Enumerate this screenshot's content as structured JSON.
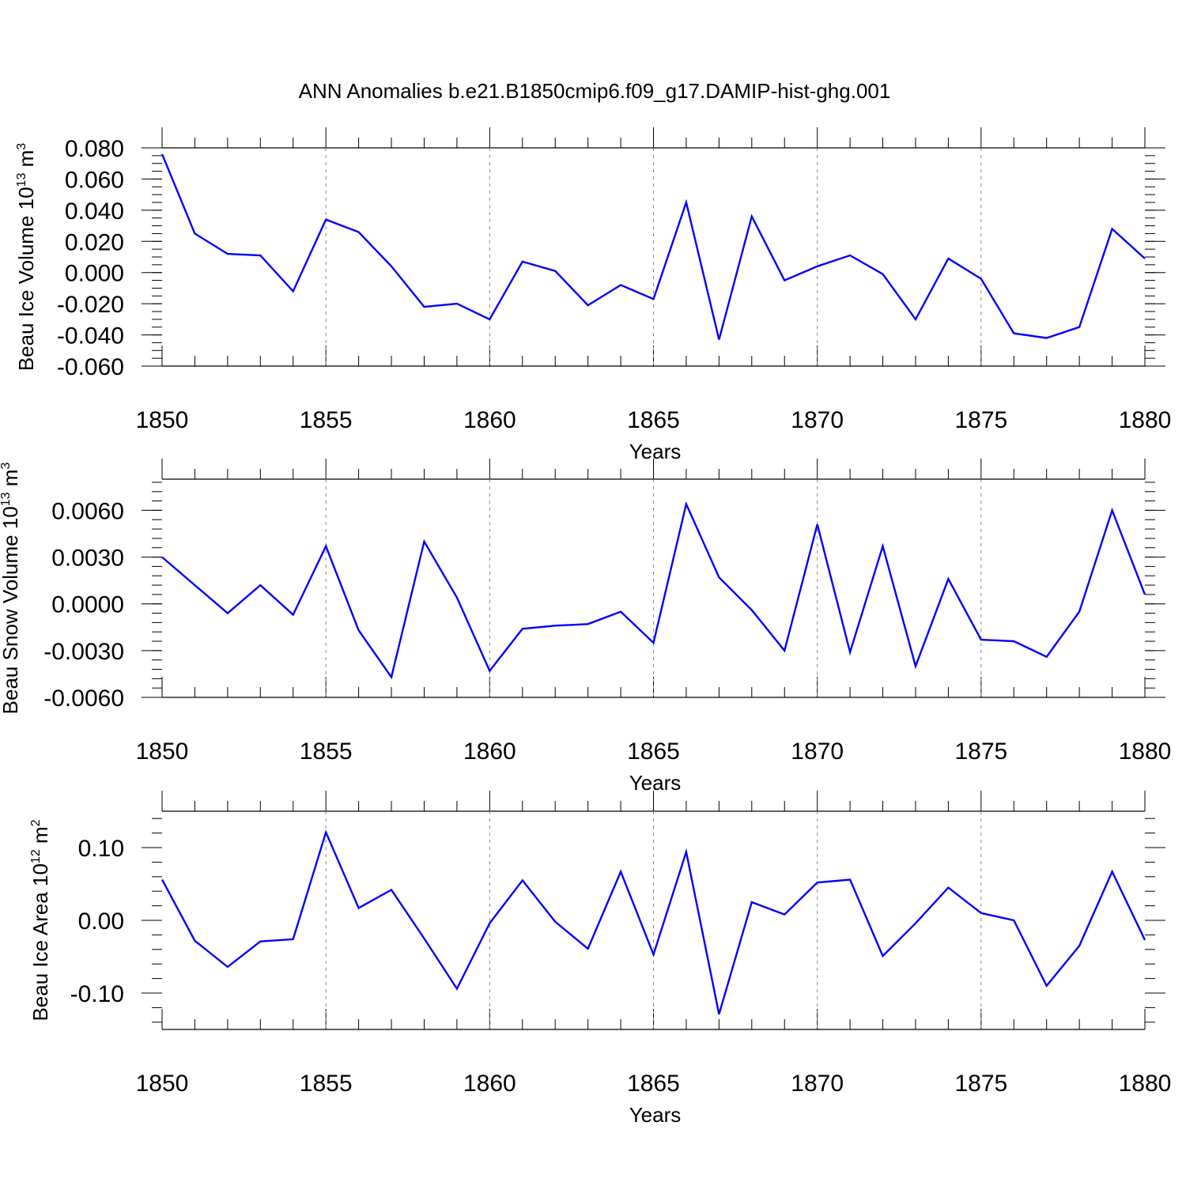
{
  "figure": {
    "title": "ANN Anomalies b.e21.B1850cmip6.f09_g17.DAMIP-hist-ghg.001",
    "line_color": "#0000ff"
  },
  "chart_data": [
    {
      "type": "line",
      "xlabel": "Years",
      "ylabel": {
        "text": "Beau Ice Volume 10",
        "exponent": "13",
        "unit": "m",
        "unit_exponent": "3"
      },
      "xlim": [
        1850,
        1880
      ],
      "ylim": [
        -0.06,
        0.08
      ],
      "grid": "vertical dashed at 5-year ticks",
      "x_ticks": [
        "1850",
        "1855",
        "1860",
        "1865",
        "1870",
        "1875",
        "1880"
      ],
      "y_ticks": [
        {
          "value": 0.08,
          "label": "0.080"
        },
        {
          "value": 0.06,
          "label": "0.060"
        },
        {
          "value": 0.04,
          "label": "0.040"
        },
        {
          "value": 0.02,
          "label": "0.020"
        },
        {
          "value": 0.0,
          "label": "0.000"
        },
        {
          "value": -0.02,
          "label": "-0.020"
        },
        {
          "value": -0.04,
          "label": "-0.040"
        },
        {
          "value": -0.06,
          "label": "-0.060"
        }
      ],
      "y_minor_step": 0.005,
      "x": [
        1850,
        1851,
        1852,
        1853,
        1854,
        1855,
        1856,
        1857,
        1858,
        1859,
        1860,
        1861,
        1862,
        1863,
        1864,
        1865,
        1866,
        1867,
        1868,
        1869,
        1870,
        1871,
        1872,
        1873,
        1874,
        1875,
        1876,
        1877,
        1878,
        1879,
        1880
      ],
      "values": [
        0.076,
        0.025,
        0.012,
        0.011,
        -0.012,
        0.034,
        0.026,
        0.004,
        -0.022,
        -0.02,
        -0.03,
        0.007,
        0.001,
        -0.021,
        -0.008,
        -0.017,
        0.045,
        -0.043,
        0.036,
        -0.005,
        0.004,
        0.011,
        -0.001,
        -0.03,
        0.009,
        -0.004,
        -0.039,
        -0.042,
        -0.035,
        0.028,
        0.009
      ]
    },
    {
      "type": "line",
      "xlabel": "Years",
      "ylabel": {
        "text": "Beau Snow Volume 10",
        "exponent": "13",
        "unit": "m",
        "unit_exponent": "3"
      },
      "xlim": [
        1850,
        1880
      ],
      "ylim": [
        -0.006,
        0.008
      ],
      "grid": "vertical dashed at 5-year ticks",
      "x_ticks": [
        "1850",
        "1855",
        "1860",
        "1865",
        "1870",
        "1875",
        "1880"
      ],
      "y_ticks": [
        {
          "value": 0.006,
          "label": "0.0060"
        },
        {
          "value": 0.003,
          "label": "0.0030"
        },
        {
          "value": 0.0,
          "label": "0.0000"
        },
        {
          "value": -0.003,
          "label": "-0.0030"
        },
        {
          "value": -0.006,
          "label": "-0.0060"
        }
      ],
      "y_minor_step": 0.0006,
      "x": [
        1850,
        1851,
        1852,
        1853,
        1854,
        1855,
        1856,
        1857,
        1858,
        1859,
        1860,
        1861,
        1862,
        1863,
        1864,
        1865,
        1866,
        1867,
        1868,
        1869,
        1870,
        1871,
        1872,
        1873,
        1874,
        1875,
        1876,
        1877,
        1878,
        1879,
        1880
      ],
      "values": [
        0.003,
        0.0012,
        -0.0006,
        0.0012,
        -0.0007,
        0.0037,
        -0.0017,
        -0.0047,
        0.004,
        0.0004,
        -0.0043,
        -0.0016,
        -0.0014,
        -0.0013,
        -0.0005,
        -0.0025,
        0.0064,
        0.0017,
        -0.0004,
        -0.003,
        0.0051,
        -0.0031,
        0.0037,
        -0.004,
        0.0016,
        -0.0023,
        -0.0024,
        -0.0034,
        -0.0005,
        0.006,
        0.0006
      ]
    },
    {
      "type": "line",
      "xlabel": "Years",
      "ylabel": {
        "text": "Beau Ice Area 10",
        "exponent": "12",
        "unit": "m",
        "unit_exponent": "2"
      },
      "xlim": [
        1850,
        1880
      ],
      "ylim": [
        -0.15,
        0.15
      ],
      "grid": "vertical dashed at 5-year ticks",
      "x_ticks": [
        "1850",
        "1855",
        "1860",
        "1865",
        "1870",
        "1875",
        "1880"
      ],
      "y_ticks": [
        {
          "value": 0.1,
          "label": "0.10"
        },
        {
          "value": 0.0,
          "label": "0.00"
        },
        {
          "value": -0.1,
          "label": "-0.10"
        }
      ],
      "y_minor_step": 0.02,
      "x": [
        1850,
        1851,
        1852,
        1853,
        1854,
        1855,
        1856,
        1857,
        1858,
        1859,
        1860,
        1861,
        1862,
        1863,
        1864,
        1865,
        1866,
        1867,
        1868,
        1869,
        1870,
        1871,
        1872,
        1873,
        1874,
        1875,
        1876,
        1877,
        1878,
        1879,
        1880
      ],
      "values": [
        0.056,
        -0.028,
        -0.064,
        -0.029,
        -0.026,
        0.121,
        0.017,
        0.042,
        -0.025,
        -0.094,
        -0.004,
        0.055,
        -0.002,
        -0.039,
        0.067,
        -0.047,
        0.094,
        -0.129,
        0.025,
        0.008,
        0.052,
        0.056,
        -0.049,
        -0.004,
        0.045,
        0.01,
        0.0,
        -0.09,
        -0.035,
        0.067,
        -0.027
      ]
    }
  ]
}
